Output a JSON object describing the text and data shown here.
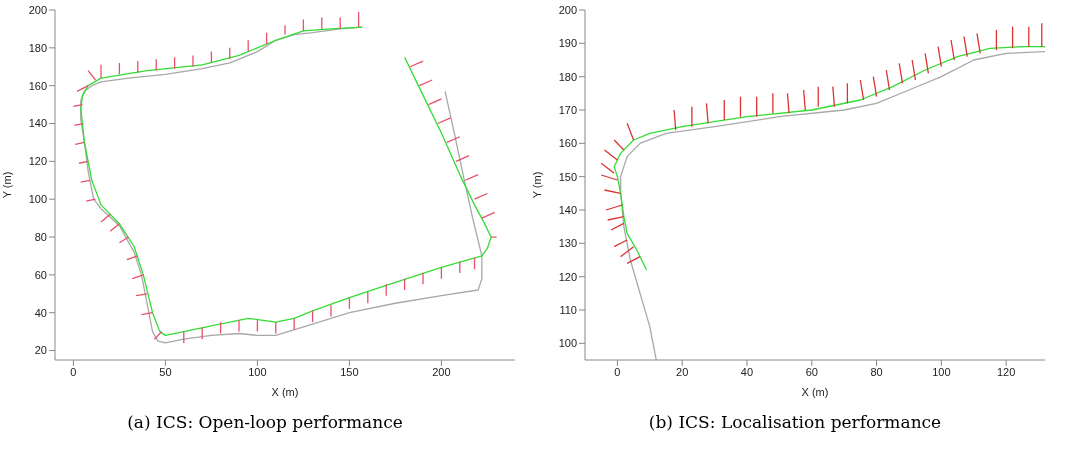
{
  "chart_data": [
    {
      "type": "line",
      "xlabel": "X (m)",
      "ylabel": "Y (m)",
      "annotations": [
        "(a) ICS: Open-loop performance"
      ],
      "xlim": [
        -10,
        240
      ],
      "xticks": [
        0,
        50,
        100,
        150,
        200
      ],
      "ylim": [
        15,
        200
      ],
      "yticks": [
        20,
        40,
        60,
        80,
        100,
        120,
        140,
        160,
        180,
        200
      ],
      "series": [
        {
          "color": "#a8a8a8",
          "x": [
            202,
            207,
            212,
            217,
            222,
            222,
            220,
            200,
            175,
            150,
            130,
            110,
            100,
            90,
            75,
            60,
            50,
            46,
            43,
            40,
            37,
            33,
            25,
            15,
            11,
            8,
            6,
            4,
            4,
            6,
            10,
            15,
            30,
            50,
            70,
            85,
            100,
            110,
            120,
            130,
            145,
            157
          ],
          "values": [
            157,
            135,
            112,
            90,
            70,
            58,
            52,
            49,
            45,
            40,
            34,
            28,
            28,
            29,
            28,
            26,
            24,
            25,
            30,
            45,
            60,
            72,
            86,
            95,
            100,
            115,
            130,
            142,
            152,
            157,
            160,
            162,
            164,
            166,
            169,
            172,
            178,
            184,
            187,
            188,
            190,
            191
          ]
        },
        {
          "color": "#33dd33",
          "x": [
            180,
            190,
            200,
            210,
            218,
            223,
            227,
            225,
            222,
            200,
            175,
            150,
            130,
            120,
            110,
            95,
            75,
            60,
            50,
            47,
            43,
            38,
            33,
            25,
            15,
            10,
            6,
            4,
            5,
            8,
            15,
            40,
            70,
            90,
            110,
            125,
            140,
            157
          ],
          "values": [
            175,
            155,
            135,
            113,
            97,
            88,
            80,
            74,
            70,
            64,
            56,
            48,
            41,
            37,
            35,
            37,
            33,
            30,
            28,
            30,
            40,
            60,
            75,
            87,
            97,
            110,
            130,
            148,
            155,
            160,
            164,
            168,
            171,
            176,
            184,
            189,
            190,
            191
          ]
        },
        {
          "color": "#e8506a",
          "x": [
            15,
            15,
            null,
            25,
            25,
            null,
            35,
            35,
            null,
            45,
            45,
            null,
            55,
            55,
            null,
            65,
            65,
            null,
            75,
            75,
            null,
            85,
            85,
            null,
            95,
            95,
            null,
            105,
            105,
            null,
            115,
            115,
            null,
            125,
            125,
            null,
            135,
            135,
            null,
            145,
            145,
            null,
            155,
            155,
            null,
            8,
            2,
            null,
            12,
            8,
            null,
            5,
            0,
            null,
            5.5,
            0.5,
            null,
            6,
            1,
            null,
            8,
            3,
            null,
            9,
            4,
            null,
            12,
            7,
            null,
            20,
            15,
            null,
            25,
            20,
            null,
            30,
            25,
            null,
            35,
            29,
            null,
            38,
            32,
            null,
            40,
            34,
            null,
            43,
            37,
            null,
            48,
            44,
            null,
            60,
            60,
            null,
            70,
            70,
            null,
            80,
            80,
            null,
            90,
            90,
            null,
            100,
            100,
            null,
            110,
            110,
            null,
            120,
            120,
            null,
            130,
            130,
            null,
            140,
            140,
            null,
            150,
            150,
            null,
            160,
            160,
            null,
            170,
            170,
            null,
            180,
            180,
            null,
            190,
            190,
            null,
            200,
            200,
            null,
            210,
            210,
            null,
            218,
            218,
            null,
            183,
            190,
            null,
            188,
            195,
            null,
            193,
            200,
            null,
            198,
            205,
            null,
            203,
            210,
            null,
            208,
            215,
            null,
            213,
            220,
            null,
            218,
            225,
            null,
            222,
            229,
            null,
            227,
            230
          ],
          "values": [
            164,
            171,
            null,
            166,
            172,
            null,
            167,
            173,
            null,
            168,
            174,
            null,
            169,
            175,
            null,
            170,
            176,
            null,
            172,
            178,
            null,
            174,
            180,
            null,
            178,
            184,
            null,
            182,
            188,
            null,
            187,
            192,
            null,
            189,
            195,
            null,
            190,
            196,
            null,
            190,
            196,
            null,
            191,
            199,
            null,
            160,
            157,
            null,
            163,
            168,
            null,
            150,
            149,
            null,
            140,
            139,
            null,
            130,
            129,
            null,
            120,
            119,
            null,
            110,
            109,
            null,
            100,
            99,
            null,
            92,
            88,
            null,
            87,
            83,
            null,
            80,
            77,
            null,
            70,
            68,
            null,
            60,
            58,
            null,
            50,
            49,
            null,
            40,
            39,
            null,
            30,
            26,
            null,
            30,
            24,
            null,
            32,
            26,
            null,
            35,
            29,
            null,
            36,
            30,
            null,
            36,
            30,
            null,
            35,
            29,
            null,
            37,
            31,
            null,
            41,
            35,
            null,
            44,
            38,
            null,
            48,
            42,
            null,
            51,
            45,
            null,
            55,
            49,
            null,
            58,
            52,
            null,
            61,
            55,
            null,
            64,
            58,
            null,
            67,
            61,
            null,
            69,
            63,
            null,
            170,
            173,
            null,
            160,
            163,
            null,
            150,
            153,
            null,
            140,
            143,
            null,
            130,
            133,
            null,
            120,
            123,
            null,
            110,
            113,
            null,
            100,
            103,
            null,
            90,
            93,
            null,
            80,
            80
          ]
        }
      ]
    },
    {
      "type": "line",
      "xlabel": "X (m)",
      "ylabel": "Y (m)",
      "annotations": [
        "(b) ICS: Localisation performance"
      ],
      "xlim": [
        -10,
        132
      ],
      "xticks": [
        0,
        20,
        40,
        60,
        80,
        100,
        120
      ],
      "ylim": [
        95,
        200
      ],
      "yticks": [
        100,
        110,
        120,
        130,
        140,
        150,
        160,
        170,
        180,
        190,
        200
      ],
      "series": [
        {
          "color": "#a8a8a8",
          "x": [
            12,
            10,
            7,
            4,
            2,
            1,
            1,
            3,
            7,
            15,
            30,
            50,
            70,
            80,
            90,
            100,
            110,
            120,
            132
          ],
          "values": [
            95,
            105,
            115,
            125,
            135,
            145,
            150,
            156,
            160,
            163,
            165,
            168,
            170,
            172,
            176,
            180,
            185,
            187,
            187.5
          ]
        },
        {
          "color": "#33dd33",
          "x": [
            9,
            6,
            3,
            2,
            1,
            0,
            -1,
            1,
            5,
            10,
            20,
            40,
            60,
            75,
            85,
            95,
            105,
            115,
            125,
            132
          ],
          "values": [
            122,
            128,
            133,
            138,
            145,
            150,
            153,
            157,
            161,
            163,
            165,
            168,
            170,
            173,
            177,
            182,
            186,
            188.5,
            189,
            189
          ]
        },
        {
          "color": "#dd3333",
          "x": [
            18,
            17.5,
            null,
            23,
            23,
            null,
            28,
            27.5,
            null,
            33,
            33,
            null,
            38,
            38,
            null,
            43,
            43,
            null,
            48,
            48,
            null,
            53,
            52.5,
            null,
            58,
            57.5,
            null,
            62,
            62,
            null,
            67,
            66.5,
            null,
            71,
            71,
            null,
            76,
            75,
            null,
            80,
            79,
            null,
            84,
            83,
            null,
            88,
            87,
            null,
            92,
            91,
            null,
            96,
            95,
            null,
            100,
            99,
            null,
            104,
            103,
            null,
            108,
            107,
            null,
            112,
            111,
            null,
            117,
            117,
            null,
            122,
            122,
            null,
            127,
            127,
            null,
            131,
            131,
            null,
            5,
            3,
            null,
            2,
            -1,
            null,
            0,
            -4,
            null,
            -1,
            -5,
            null,
            0,
            -5,
            null,
            1,
            -4,
            null,
            1.5,
            -3.5,
            null,
            2,
            -3,
            null,
            2,
            -2,
            null,
            3,
            -1,
            null,
            5,
            1,
            null,
            7,
            3
          ],
          "values": [
            164,
            170,
            null,
            165,
            171,
            null,
            166,
            172,
            null,
            167,
            173,
            null,
            168,
            174,
            null,
            168,
            174,
            null,
            169,
            175,
            null,
            169,
            175,
            null,
            170,
            176,
            null,
            171,
            177,
            null,
            171,
            177,
            null,
            172,
            178,
            null,
            173,
            179,
            null,
            174,
            180,
            null,
            176,
            182,
            null,
            178,
            184,
            null,
            179,
            185,
            null,
            181,
            187,
            null,
            183,
            189,
            null,
            185,
            191,
            null,
            186,
            192,
            null,
            187,
            193,
            null,
            188,
            194,
            null,
            188.5,
            195,
            null,
            189,
            195,
            null,
            189,
            196,
            null,
            161,
            166,
            null,
            158,
            161,
            null,
            155,
            158,
            null,
            151,
            154,
            null,
            149,
            150.5,
            null,
            145,
            146,
            null,
            141.5,
            140,
            null,
            138,
            137,
            null,
            136,
            134,
            null,
            131,
            129,
            null,
            129,
            126,
            null,
            126,
            124
          ]
        }
      ]
    }
  ]
}
